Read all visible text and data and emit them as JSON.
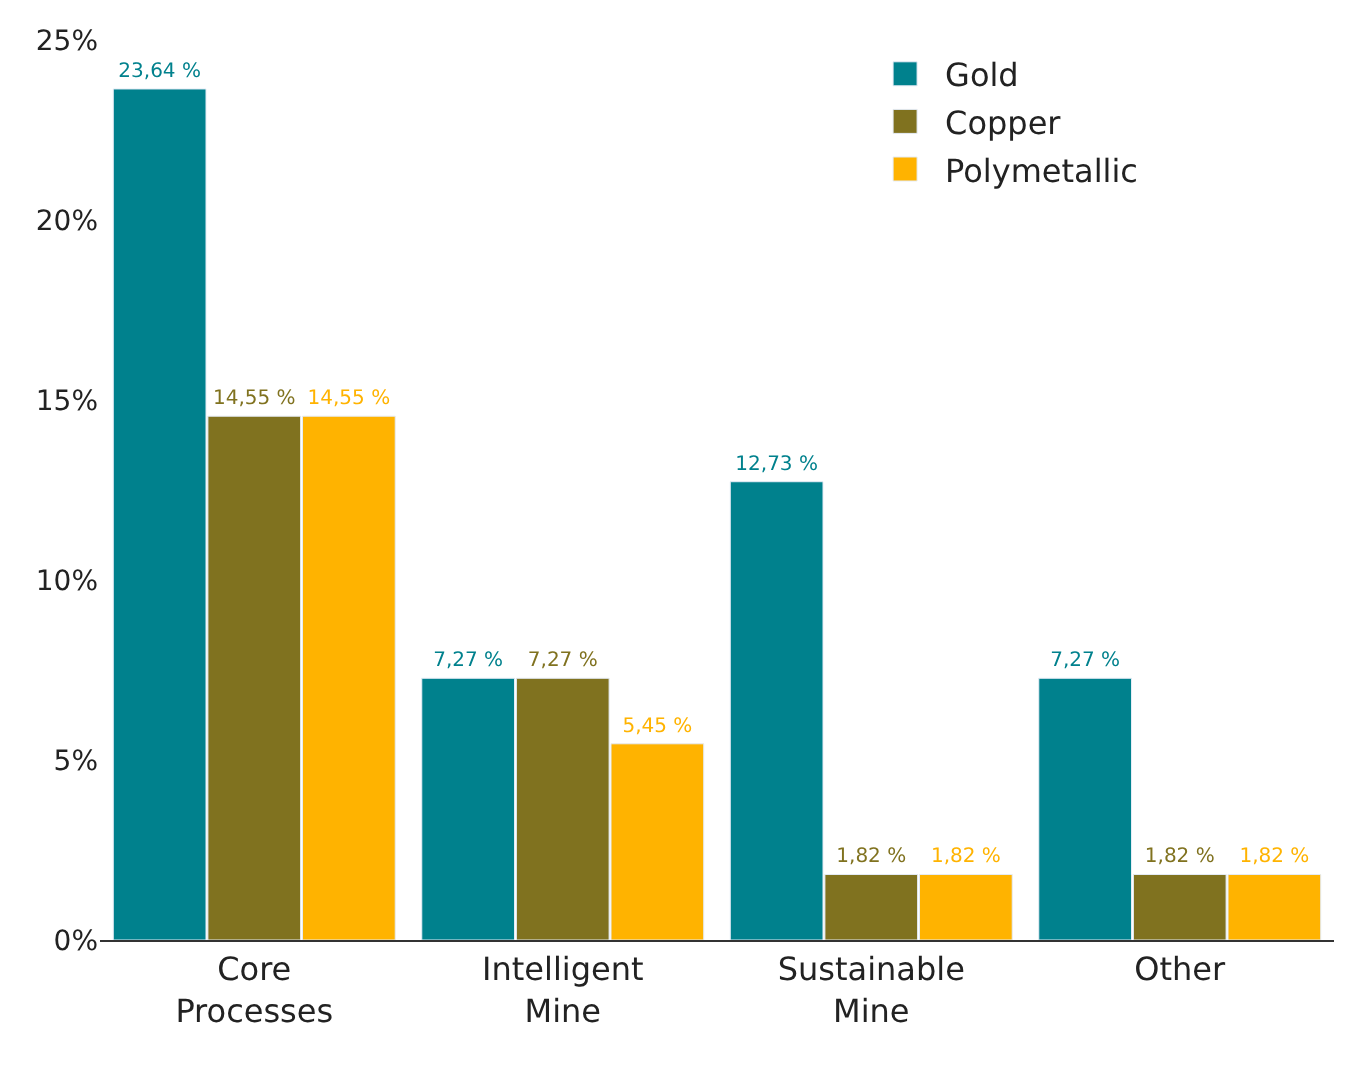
{
  "chart_data": {
    "type": "bar",
    "categories": [
      "Core Processes",
      "Intelligent Mine",
      "Sustainable Mine",
      "Other"
    ],
    "series": [
      {
        "name": "Gold",
        "color": "#00818d",
        "values": [
          23.64,
          7.27,
          12.73,
          7.27
        ],
        "value_labels": [
          "23,64 %",
          "7,27 %",
          "12,73 %",
          "7,27 %"
        ]
      },
      {
        "name": "Copper",
        "color": "#80721f",
        "values": [
          14.55,
          7.27,
          1.82,
          1.82
        ],
        "value_labels": [
          "14,55 %",
          "7,27 %",
          "1,82 %",
          "1,82 %"
        ]
      },
      {
        "name": "Polymetallic",
        "color": "#ffb300",
        "values": [
          14.55,
          5.45,
          1.82,
          1.82
        ],
        "value_labels": [
          "14,55 %",
          "5,45 %",
          "1,82 %",
          "1,82 %"
        ]
      }
    ],
    "ylim": [
      0,
      25
    ],
    "yticks": [
      {
        "value": 0,
        "label": "0%"
      },
      {
        "value": 5,
        "label": "5%"
      },
      {
        "value": 10,
        "label": "10%"
      },
      {
        "value": 15,
        "label": "15%"
      },
      {
        "value": 20,
        "label": "20%"
      },
      {
        "value": 25,
        "label": "25%"
      }
    ],
    "legend": "top right"
  }
}
